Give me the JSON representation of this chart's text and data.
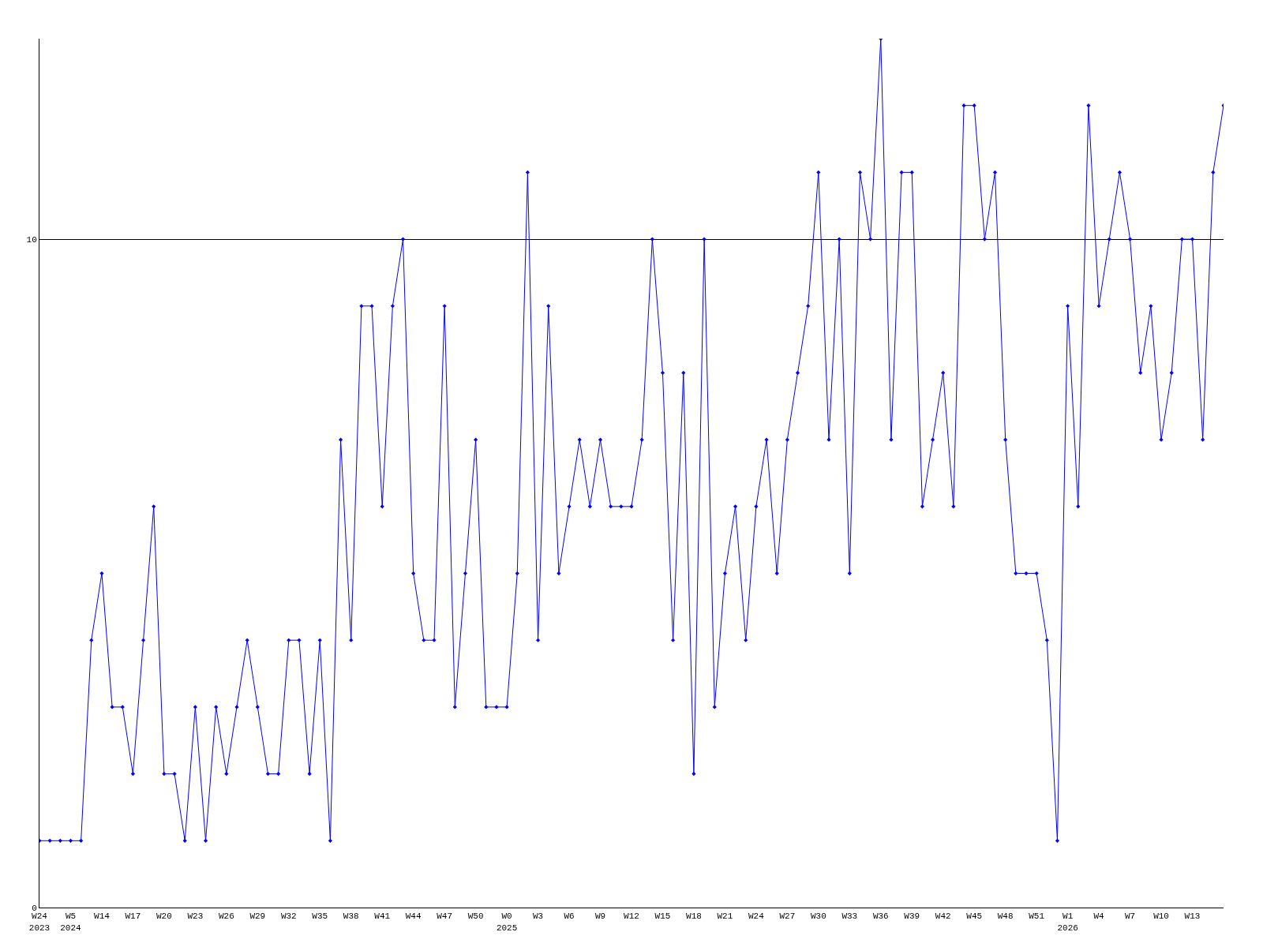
{
  "chart_data": {
    "type": "line",
    "categories": [
      "W24\n2023",
      null,
      null,
      "W5\n2024",
      null,
      null,
      "W14",
      null,
      null,
      "W17",
      null,
      null,
      "W20",
      null,
      null,
      "W23",
      null,
      null,
      "W26",
      null,
      null,
      "W29",
      null,
      null,
      "W32",
      null,
      null,
      "W35",
      null,
      null,
      "W38",
      null,
      null,
      "W41",
      null,
      null,
      "W44",
      null,
      null,
      "W47",
      null,
      null,
      "W50",
      null,
      null,
      "W0\n2025",
      null,
      null,
      "W3",
      null,
      null,
      "W6",
      null,
      null,
      "W9",
      null,
      null,
      "W12",
      null,
      null,
      "W15",
      null,
      null,
      "W18",
      null,
      null,
      "W21",
      null,
      null,
      "W24",
      null,
      null,
      "W27",
      null,
      null,
      "W30",
      null,
      null,
      "W33",
      null,
      null,
      "W36",
      null,
      null,
      "W39",
      null,
      null,
      "W42",
      null,
      null,
      "W45",
      null,
      null,
      "W48",
      null,
      null,
      "W51",
      null,
      null,
      "W1\n2026",
      null,
      null,
      "W4",
      null,
      null,
      "W7",
      null,
      null,
      "W10",
      null,
      null,
      "W13",
      null,
      null,
      null
    ],
    "series": [
      {
        "color": "#0000ff",
        "values": [
          1,
          1,
          1,
          1,
          1,
          4,
          5,
          3,
          3,
          2,
          4,
          6,
          2,
          2,
          1,
          3,
          1,
          3,
          2,
          3,
          4,
          3,
          2,
          2,
          4,
          4,
          2,
          4,
          1,
          7,
          4,
          9,
          9,
          6,
          9,
          10,
          5,
          4,
          4,
          9,
          3,
          5,
          7,
          3,
          3,
          3,
          5,
          11,
          4,
          9,
          5,
          6,
          7,
          6,
          7,
          6,
          6,
          6,
          7,
          10,
          8,
          4,
          8,
          2,
          10,
          3,
          5,
          6,
          4,
          6,
          7,
          5,
          7,
          8,
          9,
          11,
          7,
          10,
          5,
          11,
          10,
          13,
          7,
          11,
          11,
          6,
          7,
          8,
          6,
          12,
          12,
          10,
          11,
          7,
          5,
          5,
          5,
          4,
          1,
          9,
          6,
          12,
          9,
          10,
          11,
          10,
          8,
          9,
          7,
          8,
          10,
          10,
          7,
          11,
          12
        ]
      }
    ],
    "ylim": [
      0,
      13
    ],
    "yticks": [
      0,
      10
    ],
    "grid": "y",
    "marker": "diamond",
    "line_style": "solid",
    "legend": false
  }
}
